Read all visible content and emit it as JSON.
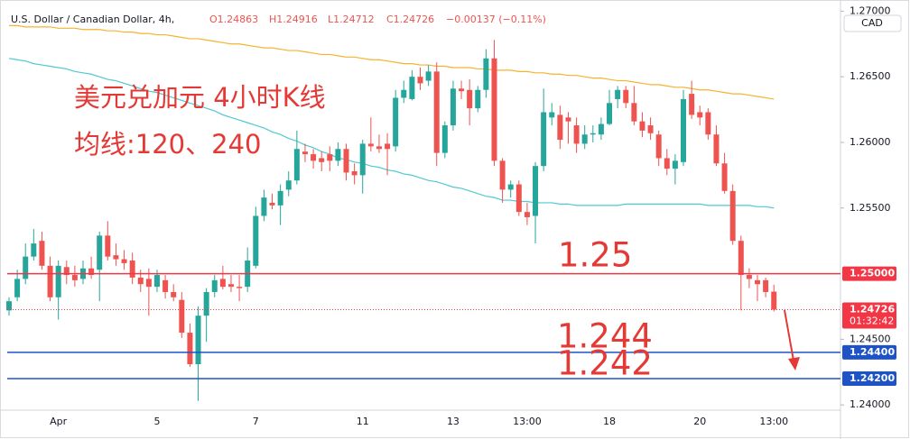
{
  "header": {
    "title": "U.S. Dollar / Canadian Dollar, 4h,",
    "open": "O1.24863",
    "high": "H1.24916",
    "low": "L1.24712",
    "close": "C1.24726",
    "change": "−0.00137 (−0.11%)"
  },
  "chart_data": {
    "type": "candlestick",
    "currency": "CAD",
    "categories": [
      null,
      null,
      null,
      null,
      null,
      null,
      "Apr",
      null,
      null,
      null,
      null,
      null,
      null,
      null,
      null,
      null,
      null,
      null,
      "5",
      null,
      null,
      null,
      null,
      null,
      null,
      null,
      null,
      null,
      null,
      null,
      "7",
      null,
      null,
      null,
      null,
      null,
      null,
      null,
      null,
      null,
      null,
      null,
      null,
      "11",
      null,
      null,
      null,
      null,
      null,
      null,
      null,
      null,
      null,
      null,
      "13",
      null,
      null,
      null,
      null,
      null,
      null,
      null,
      null,
      "13:00",
      null,
      null,
      null,
      null,
      null,
      null,
      null,
      null,
      null,
      "18",
      null,
      null,
      null,
      null,
      null,
      null,
      null,
      null,
      null,
      null,
      "20",
      null,
      null,
      null,
      null,
      null,
      null,
      null,
      null,
      "13:00"
    ],
    "open": [
      1.2472,
      1.2482,
      1.2496,
      1.2513,
      1.2525,
      1.2506,
      1.2482,
      1.2505,
      1.2499,
      1.2496,
      1.2504,
      1.2503,
      1.2529,
      1.2514,
      1.2511,
      1.251,
      1.2497,
      1.2496,
      1.249,
      1.2495,
      1.2486,
      1.248,
      1.2455,
      1.2431,
      1.2468,
      1.2486,
      1.2496,
      1.2492,
      1.249,
      1.249,
      1.2506,
      1.2544,
      1.2554,
      1.2552,
      1.2564,
      1.2571,
      1.2593,
      1.2591,
      1.2588,
      1.2591,
      1.2586,
      1.2595,
      1.2578,
      1.2575,
      1.2599,
      1.2597,
      1.2599,
      1.2597,
      1.2634,
      1.2633,
      1.265,
      1.2647,
      1.2654,
      1.2592,
      1.2613,
      1.2641,
      1.264,
      1.2626,
      1.264,
      1.2664,
      1.2586,
      1.2564,
      1.2568,
      1.2547,
      1.2544,
      1.2582,
      1.2619,
      1.2621,
      1.2619,
      1.2613,
      1.2599,
      1.2606,
      1.2606,
      1.2614,
      1.2633,
      1.264,
      1.263,
      1.2616,
      1.2613,
      1.2606,
      1.2588,
      1.258,
      1.2585,
      1.2637,
      1.2623,
      1.2623,
      1.2606,
      1.2584,
      1.2563,
      1.2525,
      1.2499,
      1.2495,
      1.2495,
      1.24863
    ],
    "high": [
      1.2482,
      1.2503,
      1.2523,
      1.2534,
      1.2532,
      1.2513,
      1.251,
      1.251,
      1.2506,
      1.251,
      1.2513,
      1.2532,
      1.254,
      1.2523,
      1.2518,
      1.2516,
      1.2503,
      1.2504,
      1.2503,
      1.2499,
      1.2492,
      1.2486,
      1.2462,
      1.2475,
      1.2489,
      1.2499,
      1.2506,
      1.2499,
      1.2499,
      1.252,
      1.2551,
      1.2564,
      1.2561,
      1.2568,
      1.2578,
      1.2609,
      1.2599,
      1.2595,
      1.2593,
      1.2597,
      1.26,
      1.2599,
      1.2584,
      1.2602,
      1.2619,
      1.2606,
      1.2607,
      1.264,
      1.2647,
      1.2655,
      1.2657,
      1.2659,
      1.2661,
      1.2616,
      1.2647,
      1.2647,
      1.2648,
      1.2643,
      1.2671,
      1.2678,
      1.2588,
      1.2571,
      1.2571,
      1.2554,
      1.2585,
      1.2641,
      1.263,
      1.2628,
      1.2623,
      1.2619,
      1.2613,
      1.2613,
      1.2619,
      1.264,
      1.2643,
      1.2643,
      1.2643,
      1.2623,
      1.2619,
      1.2609,
      1.2595,
      1.2591,
      1.264,
      1.2647,
      1.2628,
      1.2626,
      1.2613,
      1.2592,
      1.2568,
      1.2529,
      1.2504,
      1.2499,
      1.2497,
      1.24916
    ],
    "low": [
      1.2468,
      1.2479,
      1.2492,
      1.251,
      1.2503,
      1.2479,
      1.2465,
      1.2492,
      1.249,
      1.2492,
      1.2496,
      1.2479,
      1.251,
      1.2506,
      1.2503,
      1.2492,
      1.2486,
      1.2468,
      1.2486,
      1.2481,
      1.2479,
      1.2451,
      1.2429,
      1.2403,
      1.2448,
      1.2482,
      1.2488,
      1.2486,
      1.2479,
      1.2486,
      1.2504,
      1.254,
      1.2549,
      1.2537,
      1.2559,
      1.2568,
      1.2585,
      1.258,
      1.2578,
      1.2578,
      1.2582,
      1.2571,
      1.2568,
      1.2561,
      1.2593,
      1.2592,
      1.2575,
      1.2593,
      1.263,
      1.2632,
      1.264,
      1.2643,
      1.2582,
      1.2588,
      1.2609,
      1.2633,
      1.2613,
      1.2623,
      1.2634,
      1.2582,
      1.2554,
      1.2558,
      1.2544,
      1.2537,
      1.2523,
      1.2578,
      1.2613,
      1.2595,
      1.2599,
      1.2592,
      1.2595,
      1.26,
      1.2602,
      1.2613,
      1.2626,
      1.2626,
      1.2613,
      1.2604,
      1.2602,
      1.2582,
      1.2575,
      1.2568,
      1.2582,
      1.2618,
      1.2613,
      1.2602,
      1.2582,
      1.2561,
      1.2522,
      1.2472,
      1.2489,
      1.2479,
      1.2482,
      1.24712
    ],
    "close": [
      1.2479,
      1.2496,
      1.2513,
      1.2523,
      1.2506,
      1.2482,
      1.2506,
      1.2499,
      1.2495,
      1.2504,
      1.2499,
      1.2529,
      1.2513,
      1.2511,
      1.2508,
      1.2497,
      1.2492,
      1.249,
      1.2499,
      1.2486,
      1.2482,
      1.2455,
      1.2431,
      1.2468,
      1.2486,
      1.2495,
      1.249,
      1.249,
      1.2489,
      1.251,
      1.2544,
      1.2558,
      1.2552,
      1.2563,
      1.2571,
      1.2595,
      1.2591,
      1.2586,
      1.2585,
      1.2586,
      1.2595,
      1.2577,
      1.2575,
      1.2599,
      1.2597,
      1.2595,
      1.2595,
      1.2634,
      1.264,
      1.265,
      1.2645,
      1.2654,
      1.2592,
      1.2613,
      1.2641,
      1.2639,
      1.2626,
      1.264,
      1.2664,
      1.2586,
      1.2564,
      1.2568,
      1.2547,
      1.2543,
      1.2582,
      1.2623,
      1.2623,
      1.2602,
      1.2616,
      1.2599,
      1.2606,
      1.2607,
      1.2614,
      1.263,
      1.264,
      1.263,
      1.2616,
      1.2609,
      1.2607,
      1.2588,
      1.258,
      1.2586,
      1.2633,
      1.2621,
      1.2619,
      1.2606,
      1.2584,
      1.2563,
      1.2525,
      1.2499,
      1.2496,
      1.2492,
      1.2486,
      1.24726
    ],
    "up_color": "#26a69a",
    "down_color": "#ef5350",
    "series": [
      {
        "color": "#f5b330",
        "values": [
          1.2689,
          1.2689,
          1.2688,
          1.2688,
          1.2688,
          1.2688,
          1.2687,
          1.2687,
          1.2687,
          1.2686,
          1.2686,
          1.2686,
          1.2685,
          1.2685,
          1.2684,
          1.2684,
          1.2683,
          1.2683,
          1.2682,
          1.2682,
          1.2681,
          1.268,
          1.2679,
          1.2679,
          1.2678,
          1.2677,
          1.2676,
          1.2675,
          1.2675,
          1.2674,
          1.2673,
          1.2672,
          1.2672,
          1.2671,
          1.267,
          1.267,
          1.2669,
          1.2668,
          1.2667,
          1.2667,
          1.2666,
          1.2665,
          1.2665,
          1.2664,
          1.2663,
          1.2663,
          1.2662,
          1.2661,
          1.266,
          1.266,
          1.2659,
          1.2659,
          1.2658,
          1.2658,
          1.2657,
          1.2657,
          1.2657,
          1.2656,
          1.2656,
          1.2655,
          1.2655,
          1.2655,
          1.2654,
          1.2654,
          1.2653,
          1.2653,
          1.2652,
          1.2652,
          1.2651,
          1.2651,
          1.265,
          1.2649,
          1.2649,
          1.2648,
          1.2647,
          1.2647,
          1.2646,
          1.2645,
          1.2644,
          1.2644,
          1.2643,
          1.2642,
          1.2642,
          1.2641,
          1.264,
          1.264,
          1.2639,
          1.2638,
          1.2637,
          1.2637,
          1.2636,
          1.2635,
          1.2634,
          1.2633
        ]
      },
      {
        "color": "#4fc9d3",
        "values": [
          1.2664,
          1.2663,
          1.2662,
          1.266,
          1.2659,
          1.2658,
          1.2657,
          1.2656,
          1.2654,
          1.2653,
          1.2652,
          1.265,
          1.2648,
          1.2647,
          1.2645,
          1.2643,
          1.2641,
          1.2639,
          1.2638,
          1.2636,
          1.2634,
          1.2632,
          1.263,
          1.2628,
          1.2626,
          1.2624,
          1.2621,
          1.2619,
          1.2617,
          1.2615,
          1.2613,
          1.2611,
          1.2608,
          1.2606,
          1.2603,
          1.2601,
          1.2598,
          1.2596,
          1.2593,
          1.2591,
          1.2588,
          1.2587,
          1.2585,
          1.2584,
          1.2582,
          1.2581,
          1.2579,
          1.2578,
          1.2576,
          1.2575,
          1.2573,
          1.2571,
          1.257,
          1.2568,
          1.2566,
          1.2565,
          1.2563,
          1.2561,
          1.2559,
          1.2558,
          1.2556,
          1.2556,
          1.2555,
          1.2555,
          1.2554,
          1.2554,
          1.2554,
          1.2553,
          1.2553,
          1.2552,
          1.2552,
          1.2552,
          1.2552,
          1.2552,
          1.2552,
          1.2553,
          1.2553,
          1.2553,
          1.2553,
          1.2553,
          1.2553,
          1.2553,
          1.2553,
          1.2553,
          1.2553,
          1.2552,
          1.2552,
          1.2552,
          1.2552,
          1.2552,
          1.2552,
          1.2551,
          1.2551,
          1.255
        ]
      }
    ],
    "ylim": [
      1.2396,
      1.2703
    ],
    "yticks": [
      {
        "value": 1.24,
        "label": "1.24000"
      },
      {
        "value": 1.245,
        "label": "1.24500"
      },
      {
        "value": 1.255,
        "label": "1.25500"
      },
      {
        "value": 1.26,
        "label": "1.26000"
      },
      {
        "value": 1.265,
        "label": "1.26500"
      },
      {
        "value": 1.27,
        "label": "1.27000"
      }
    ],
    "grid": false,
    "levels": [
      {
        "value": 1.25,
        "label": "1.25000",
        "color": "#f23645"
      },
      {
        "value": 1.244,
        "label": "1.24400",
        "color": "#1e53c8"
      },
      {
        "value": 1.242,
        "label": "1.24200",
        "color": "#1e53c8"
      }
    ],
    "last_price": {
      "value": 1.24726,
      "label": "1.24726",
      "countdown": "01:32:42",
      "color": "#f23645"
    },
    "annotations": [
      "美元兑加元 4小时K线",
      "均线:120、240",
      "1.25",
      "1.244",
      "1.242"
    ]
  }
}
